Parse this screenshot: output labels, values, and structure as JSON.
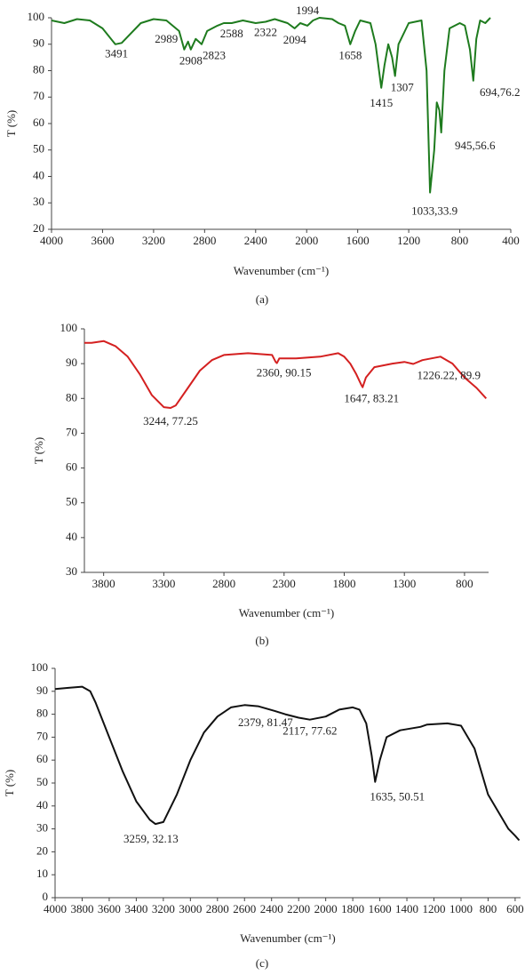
{
  "chart_data": [
    {
      "type": "line",
      "caption": "(a)",
      "x_label": "Wavenumber (cm⁻¹)",
      "y_label": "T (%)",
      "color": "#1e7b1e",
      "xlim": [
        4000,
        400
      ],
      "xticks": [
        4000,
        3600,
        3200,
        2800,
        2400,
        2000,
        1600,
        1200,
        800,
        400
      ],
      "ylim": [
        20,
        100
      ],
      "yticks": [
        20,
        30,
        40,
        50,
        60,
        70,
        80,
        90,
        100
      ],
      "x": [
        4000,
        3900,
        3800,
        3700,
        3600,
        3500,
        3450,
        3400,
        3300,
        3200,
        3100,
        3000,
        2960,
        2930,
        2908,
        2870,
        2823,
        2780,
        2700,
        2650,
        2588,
        2500,
        2400,
        2322,
        2250,
        2150,
        2094,
        2050,
        1994,
        1950,
        1900,
        1800,
        1750,
        1700,
        1658,
        1620,
        1580,
        1500,
        1460,
        1415,
        1390,
        1360,
        1330,
        1307,
        1280,
        1200,
        1100,
        1060,
        1033,
        1000,
        980,
        960,
        945,
        920,
        880,
        800,
        760,
        720,
        694,
        670,
        640,
        600,
        560
      ],
      "values": [
        99,
        98,
        99.5,
        99,
        96,
        90,
        90.5,
        93,
        98,
        99.5,
        99,
        95,
        88,
        91,
        88,
        92,
        90,
        95,
        97,
        98,
        98,
        99,
        98,
        98.5,
        99.5,
        98,
        96,
        98,
        97,
        99,
        100,
        99.5,
        98,
        97,
        90,
        95,
        99,
        98,
        90,
        73.5,
        82,
        90,
        85,
        78,
        90,
        98,
        99,
        80,
        33.9,
        50,
        68,
        65,
        56.6,
        80,
        96,
        98,
        97,
        88,
        76.2,
        92,
        99,
        98,
        100
      ],
      "annotations": [
        {
          "text": "3491",
          "x": 3491,
          "y": 90
        },
        {
          "text": "2989",
          "x": 2989,
          "y": 95
        },
        {
          "text": "2908",
          "x": 2908,
          "y": 88
        },
        {
          "text": "2823",
          "x": 2823,
          "y": 90
        },
        {
          "text": "2588",
          "x": 2588,
          "y": 98
        },
        {
          "text": "2322",
          "x": 2322,
          "y": 98.5
        },
        {
          "text": "2094",
          "x": 2094,
          "y": 96
        },
        {
          "text": "1994",
          "x": 1994,
          "y": 97
        },
        {
          "text": "1658",
          "x": 1658,
          "y": 90
        },
        {
          "text": "1415",
          "x": 1415,
          "y": 73.5
        },
        {
          "text": "1307",
          "x": 1307,
          "y": 78
        },
        {
          "text": "694,76.2",
          "x": 694,
          "y": 76.2
        },
        {
          "text": "945,56.6",
          "x": 945,
          "y": 56.6
        },
        {
          "text": "1033,33.9",
          "x": 1033,
          "y": 33.9
        }
      ]
    },
    {
      "type": "line",
      "caption": "(b)",
      "x_label": "Wavenumber (cm⁻¹)",
      "y_label": "T (%)",
      "color": "#d42020",
      "xlim": [
        3960,
        600
      ],
      "xticks": [
        3800,
        3300,
        2800,
        2300,
        1800,
        1300,
        800
      ],
      "ylim": [
        30,
        100
      ],
      "yticks": [
        30,
        40,
        50,
        60,
        70,
        80,
        90,
        100
      ],
      "x": [
        3960,
        3900,
        3800,
        3700,
        3600,
        3500,
        3400,
        3300,
        3244,
        3200,
        3100,
        3000,
        2900,
        2800,
        2600,
        2400,
        2370,
        2360,
        2340,
        2200,
        2000,
        1850,
        1800,
        1750,
        1700,
        1660,
        1647,
        1620,
        1550,
        1400,
        1300,
        1226.22,
        1150,
        1000,
        900,
        800,
        700,
        620
      ],
      "values": [
        96,
        96,
        96.5,
        95,
        92,
        87,
        81,
        77.5,
        77.25,
        78,
        83,
        88,
        91,
        92.5,
        93,
        92.5,
        90.5,
        90.15,
        91.5,
        91.5,
        92,
        93,
        92,
        90,
        87,
        84,
        83.21,
        86,
        89,
        90,
        90.5,
        89.9,
        91,
        92,
        90,
        86,
        83,
        80
      ],
      "annotations": [
        {
          "text": "3244, 77.25",
          "x": 3244,
          "y": 77.25
        },
        {
          "text": "2360, 90.15",
          "x": 2360,
          "y": 90.15
        },
        {
          "text": "1647, 83.21",
          "x": 1647,
          "y": 83.21
        },
        {
          "text": "1226.22, 89.9",
          "x": 1226.22,
          "y": 89.9
        }
      ]
    },
    {
      "type": "line",
      "caption": "(c)",
      "x_label": "Wavenumber (cm⁻¹)",
      "y_label": "T (%)",
      "color": "#111111",
      "xlim": [
        4000,
        560
      ],
      "xticks": [
        4000,
        3800,
        3600,
        3400,
        3200,
        3000,
        2800,
        2600,
        2400,
        2200,
        2000,
        1800,
        1600,
        1400,
        1200,
        1000,
        800,
        600
      ],
      "ylim": [
        0,
        100
      ],
      "yticks": [
        0,
        10,
        20,
        30,
        40,
        50,
        60,
        70,
        80,
        90,
        100
      ],
      "x": [
        4000,
        3900,
        3800,
        3740,
        3700,
        3600,
        3500,
        3400,
        3300,
        3259,
        3200,
        3100,
        3000,
        2900,
        2800,
        2700,
        2600,
        2500,
        2379,
        2300,
        2200,
        2117,
        2000,
        1900,
        1800,
        1750,
        1700,
        1660,
        1635,
        1600,
        1550,
        1450,
        1300,
        1250,
        1100,
        1000,
        900,
        800,
        700,
        650,
        600,
        570
      ],
      "values": [
        91,
        91.5,
        92,
        90,
        85,
        70,
        55,
        42,
        34,
        32.13,
        33,
        45,
        60,
        72,
        79,
        83,
        84,
        83.5,
        81.47,
        80,
        78.5,
        77.62,
        79,
        82,
        83,
        82,
        76,
        62,
        50.51,
        60,
        70,
        73,
        74.5,
        75.5,
        76,
        75,
        65,
        45,
        35,
        30,
        27,
        25
      ],
      "annotations": [
        {
          "text": "3259, 32.13",
          "x": 3259,
          "y": 32.13
        },
        {
          "text": "2379, 81.47",
          "x": 2379,
          "y": 81.47
        },
        {
          "text": "2117, 77.62",
          "x": 2117,
          "y": 77.62
        },
        {
          "text": "1635, 50.51",
          "x": 1635,
          "y": 50.51
        }
      ]
    }
  ]
}
